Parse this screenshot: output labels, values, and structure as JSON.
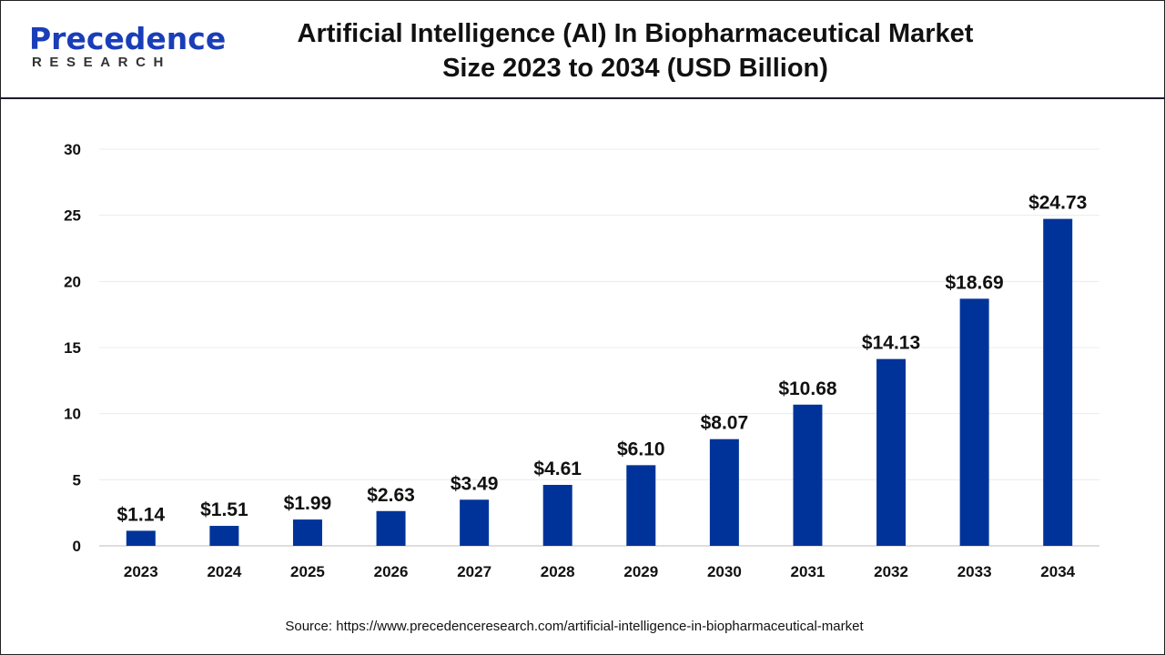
{
  "logo": {
    "line1": "Precedence",
    "line2": "RESEARCH"
  },
  "chart_data": {
    "type": "bar",
    "title": "Artificial Intelligence (AI) In Biopharmaceutical Market Size 2023 to 2034 (USD Billion)",
    "title_line1": "Artificial Intelligence (AI) In Biopharmaceutical Market",
    "title_line2": "Size 2023 to 2034 (USD Billion)",
    "categories": [
      "2023",
      "2024",
      "2025",
      "2026",
      "2027",
      "2028",
      "2029",
      "2030",
      "2031",
      "2032",
      "2033",
      "2034"
    ],
    "values": [
      1.14,
      1.51,
      1.99,
      2.63,
      3.49,
      4.61,
      6.1,
      8.07,
      10.68,
      14.13,
      18.69,
      24.73
    ],
    "data_labels": [
      "$1.14",
      "$1.51",
      "$1.99",
      "$2.63",
      "$3.49",
      "$4.61",
      "$6.10",
      "$8.07",
      "$10.68",
      "$14.13",
      "$18.69",
      "$24.73"
    ],
    "yticks": [
      "0",
      "5",
      "10",
      "15",
      "20",
      "25",
      "30"
    ],
    "ylim": [
      0,
      30
    ],
    "xlabel": "",
    "ylabel": "",
    "grid": true,
    "bar_color": "#003399"
  },
  "source": "Source: https://www.precedenceresearch.com/artificial-intelligence-in-biopharmaceutical-market"
}
